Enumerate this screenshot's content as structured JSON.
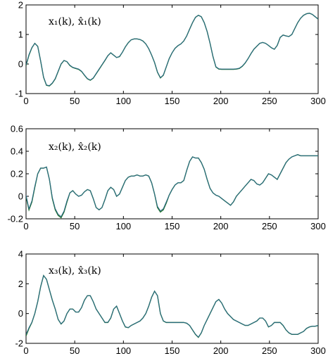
{
  "chart_data": [
    {
      "type": "line",
      "annotation": "x₁(k), x̂₁(k)",
      "xlim": [
        0,
        300
      ],
      "ylim": [
        -1,
        2
      ],
      "xticks": [
        0,
        50,
        100,
        150,
        200,
        250,
        300
      ],
      "yticks": [
        -1,
        0,
        1,
        2
      ],
      "colors": {
        "estimate": "#1f6e2e",
        "true": "#2a6a8a"
      },
      "x": [
        0,
        3,
        6,
        9,
        12,
        15,
        18,
        21,
        24,
        27,
        30,
        33,
        36,
        39,
        42,
        45,
        48,
        51,
        54,
        57,
        60,
        63,
        66,
        69,
        72,
        75,
        78,
        81,
        84,
        87,
        90,
        93,
        96,
        99,
        102,
        105,
        108,
        111,
        114,
        117,
        120,
        123,
        126,
        129,
        132,
        135,
        138,
        141,
        144,
        147,
        150,
        153,
        156,
        159,
        162,
        165,
        168,
        171,
        174,
        177,
        180,
        183,
        186,
        189,
        192,
        195,
        198,
        201,
        204,
        207,
        210,
        213,
        216,
        219,
        222,
        225,
        228,
        231,
        234,
        237,
        240,
        243,
        246,
        249,
        252,
        255,
        258,
        261,
        264,
        267,
        270,
        273,
        276,
        279,
        282,
        285,
        288,
        291,
        294,
        297,
        300
      ],
      "series": [
        {
          "values": [
            -0.05,
            0.3,
            0.55,
            0.7,
            0.6,
            0.1,
            -0.45,
            -0.72,
            -0.74,
            -0.65,
            -0.5,
            -0.25,
            0.0,
            0.12,
            0.08,
            -0.05,
            -0.12,
            -0.15,
            -0.18,
            -0.25,
            -0.38,
            -0.5,
            -0.55,
            -0.48,
            -0.33,
            -0.18,
            -0.03,
            0.12,
            0.28,
            0.38,
            0.3,
            0.22,
            0.25,
            0.4,
            0.58,
            0.72,
            0.82,
            0.85,
            0.85,
            0.83,
            0.78,
            0.68,
            0.52,
            0.3,
            0.05,
            -0.28,
            -0.47,
            -0.38,
            -0.1,
            0.18,
            0.38,
            0.53,
            0.62,
            0.68,
            0.78,
            0.95,
            1.18,
            1.4,
            1.58,
            1.65,
            1.6,
            1.4,
            1.1,
            0.7,
            0.25,
            -0.1,
            -0.17,
            -0.18,
            -0.18,
            -0.18,
            -0.18,
            -0.18,
            -0.17,
            -0.15,
            -0.08,
            0.03,
            0.18,
            0.35,
            0.5,
            0.6,
            0.7,
            0.73,
            0.7,
            0.63,
            0.55,
            0.5,
            0.63,
            0.9,
            0.98,
            0.95,
            0.93,
            1.0,
            1.2,
            1.4,
            1.55,
            1.65,
            1.7,
            1.72,
            1.68,
            1.6,
            1.52
          ]
        },
        {
          "values": [
            -0.03,
            0.32,
            0.56,
            0.7,
            0.59,
            0.11,
            -0.44,
            -0.71,
            -0.73,
            -0.64,
            -0.49,
            -0.24,
            0.01,
            0.12,
            0.08,
            -0.04,
            -0.11,
            -0.14,
            -0.17,
            -0.24,
            -0.37,
            -0.49,
            -0.54,
            -0.47,
            -0.32,
            -0.17,
            -0.02,
            0.13,
            0.28,
            0.38,
            0.3,
            0.22,
            0.26,
            0.4,
            0.58,
            0.72,
            0.82,
            0.85,
            0.85,
            0.83,
            0.78,
            0.68,
            0.52,
            0.3,
            0.05,
            -0.27,
            -0.46,
            -0.37,
            -0.09,
            0.18,
            0.38,
            0.53,
            0.62,
            0.68,
            0.78,
            0.95,
            1.18,
            1.4,
            1.58,
            1.65,
            1.6,
            1.4,
            1.1,
            0.7,
            0.25,
            -0.09,
            -0.16,
            -0.17,
            -0.17,
            -0.17,
            -0.17,
            -0.17,
            -0.16,
            -0.14,
            -0.07,
            0.04,
            0.18,
            0.35,
            0.5,
            0.6,
            0.7,
            0.73,
            0.7,
            0.63,
            0.55,
            0.5,
            0.63,
            0.9,
            0.98,
            0.95,
            0.93,
            1.0,
            1.2,
            1.4,
            1.55,
            1.65,
            1.7,
            1.72,
            1.68,
            1.6,
            1.52
          ]
        }
      ]
    },
    {
      "type": "line",
      "annotation": "x₂(k), x̂₂(k)",
      "xlim": [
        0,
        300
      ],
      "ylim": [
        -0.2,
        0.6
      ],
      "xticks": [
        0,
        50,
        100,
        150,
        200,
        250,
        300
      ],
      "yticks": [
        -0.2,
        0,
        0.2,
        0.4,
        0.6
      ],
      "colors": {
        "estimate": "#1f6e2e",
        "true": "#2a6a8a"
      },
      "x": [
        0,
        3,
        6,
        9,
        12,
        15,
        18,
        21,
        24,
        27,
        30,
        33,
        36,
        39,
        42,
        45,
        48,
        51,
        54,
        57,
        60,
        63,
        66,
        69,
        72,
        75,
        78,
        81,
        84,
        87,
        90,
        93,
        96,
        99,
        102,
        105,
        108,
        111,
        114,
        117,
        120,
        123,
        126,
        129,
        132,
        135,
        138,
        141,
        144,
        147,
        150,
        153,
        156,
        159,
        162,
        165,
        168,
        171,
        174,
        177,
        180,
        183,
        186,
        189,
        192,
        195,
        198,
        201,
        204,
        207,
        210,
        213,
        216,
        219,
        222,
        225,
        228,
        231,
        234,
        237,
        240,
        243,
        246,
        249,
        252,
        255,
        258,
        261,
        264,
        267,
        270,
        273,
        276,
        279,
        282,
        285,
        288,
        291,
        294,
        297,
        300
      ],
      "series": [
        {
          "values": [
            0.0,
            -0.12,
            -0.05,
            0.08,
            0.2,
            0.25,
            0.25,
            0.26,
            0.15,
            -0.02,
            -0.12,
            -0.17,
            -0.19,
            -0.14,
            -0.05,
            0.03,
            0.05,
            0.02,
            0.0,
            0.01,
            0.04,
            0.06,
            0.05,
            -0.02,
            -0.1,
            -0.12,
            -0.1,
            -0.03,
            0.05,
            0.08,
            0.06,
            0.0,
            0.02,
            0.08,
            0.14,
            0.17,
            0.18,
            0.18,
            0.19,
            0.18,
            0.18,
            0.19,
            0.18,
            0.12,
            0.02,
            -0.1,
            -0.14,
            -0.12,
            -0.06,
            0.01,
            0.06,
            0.1,
            0.12,
            0.12,
            0.14,
            0.23,
            0.31,
            0.35,
            0.34,
            0.34,
            0.3,
            0.24,
            0.15,
            0.07,
            0.03,
            0.01,
            0.0,
            -0.02,
            -0.04,
            -0.06,
            -0.08,
            -0.05,
            0.0,
            0.03,
            0.06,
            0.09,
            0.12,
            0.15,
            0.14,
            0.11,
            0.1,
            0.12,
            0.16,
            0.2,
            0.19,
            0.17,
            0.15,
            0.2,
            0.25,
            0.3,
            0.33,
            0.35,
            0.36,
            0.37,
            0.36,
            0.36,
            0.36,
            0.36,
            0.36,
            0.36,
            0.36
          ]
        },
        {
          "values": [
            0.01,
            -0.11,
            -0.04,
            0.09,
            0.2,
            0.25,
            0.25,
            0.26,
            0.15,
            -0.01,
            -0.11,
            -0.16,
            -0.18,
            -0.13,
            -0.04,
            0.03,
            0.05,
            0.02,
            0.0,
            0.01,
            0.04,
            0.06,
            0.05,
            -0.02,
            -0.1,
            -0.12,
            -0.1,
            -0.03,
            0.05,
            0.08,
            0.06,
            0.0,
            0.02,
            0.08,
            0.14,
            0.17,
            0.18,
            0.18,
            0.19,
            0.18,
            0.18,
            0.19,
            0.18,
            0.12,
            0.02,
            -0.09,
            -0.13,
            -0.11,
            -0.05,
            0.01,
            0.06,
            0.1,
            0.12,
            0.12,
            0.14,
            0.23,
            0.31,
            0.35,
            0.34,
            0.34,
            0.3,
            0.24,
            0.15,
            0.07,
            0.03,
            0.01,
            0.0,
            -0.02,
            -0.04,
            -0.06,
            -0.08,
            -0.05,
            0.0,
            0.03,
            0.06,
            0.09,
            0.12,
            0.15,
            0.14,
            0.11,
            0.1,
            0.12,
            0.16,
            0.2,
            0.19,
            0.17,
            0.15,
            0.2,
            0.25,
            0.3,
            0.33,
            0.35,
            0.36,
            0.37,
            0.36,
            0.36,
            0.36,
            0.36,
            0.36,
            0.36,
            0.36
          ]
        }
      ]
    },
    {
      "type": "line",
      "annotation": "x₃(k), x̂₃(k)",
      "xlim": [
        0,
        300
      ],
      "ylim": [
        -2,
        4
      ],
      "xticks": [
        0,
        50,
        100,
        150,
        200,
        250,
        300
      ],
      "yticks": [
        -2,
        0,
        2,
        4
      ],
      "colors": {
        "estimate": "#1f6e2e",
        "true": "#2a6a8a"
      },
      "x": [
        0,
        3,
        6,
        9,
        12,
        15,
        18,
        21,
        24,
        27,
        30,
        33,
        36,
        39,
        42,
        45,
        48,
        51,
        54,
        57,
        60,
        63,
        66,
        69,
        72,
        75,
        78,
        81,
        84,
        87,
        90,
        93,
        96,
        99,
        102,
        105,
        108,
        111,
        114,
        117,
        120,
        123,
        126,
        129,
        132,
        135,
        138,
        141,
        144,
        147,
        150,
        153,
        156,
        159,
        162,
        165,
        168,
        171,
        174,
        177,
        180,
        183,
        186,
        189,
        192,
        195,
        198,
        201,
        204,
        207,
        210,
        213,
        216,
        219,
        222,
        225,
        228,
        231,
        234,
        237,
        240,
        243,
        246,
        249,
        252,
        255,
        258,
        261,
        264,
        267,
        270,
        273,
        276,
        279,
        282,
        285,
        288,
        291,
        294,
        297,
        300
      ],
      "series": [
        {
          "values": [
            -1.5,
            -1.0,
            -0.6,
            0.0,
            0.8,
            1.8,
            2.55,
            2.3,
            1.6,
            0.9,
            0.3,
            -0.4,
            -0.7,
            -0.5,
            0.0,
            0.3,
            0.3,
            0.1,
            0.1,
            0.4,
            0.9,
            1.2,
            1.2,
            0.8,
            0.3,
            0.0,
            -0.3,
            -0.6,
            -0.6,
            -0.3,
            0.3,
            0.5,
            0.0,
            -0.5,
            -0.9,
            -0.95,
            -0.8,
            -0.7,
            -0.6,
            -0.5,
            -0.3,
            0.0,
            0.5,
            1.1,
            1.5,
            1.2,
            0.0,
            -0.5,
            -0.6,
            -0.6,
            -0.6,
            -0.6,
            -0.6,
            -0.6,
            -0.6,
            -0.65,
            -0.8,
            -1.1,
            -1.4,
            -1.6,
            -1.3,
            -0.8,
            -0.4,
            0.0,
            0.4,
            0.8,
            0.95,
            0.7,
            0.3,
            0.0,
            -0.2,
            -0.4,
            -0.5,
            -0.6,
            -0.7,
            -0.8,
            -0.8,
            -0.7,
            -0.6,
            -0.5,
            -0.3,
            -0.3,
            -0.5,
            -0.9,
            -0.8,
            -0.6,
            -0.6,
            -0.6,
            -0.8,
            -1.1,
            -1.3,
            -1.4,
            -1.4,
            -1.4,
            -1.3,
            -1.2,
            -1.0,
            -0.9,
            -0.85,
            -0.85,
            -0.8
          ]
        },
        {
          "values": [
            -1.4,
            -0.95,
            -0.58,
            0.0,
            0.8,
            1.8,
            2.55,
            2.3,
            1.6,
            0.9,
            0.3,
            -0.39,
            -0.69,
            -0.49,
            0.0,
            0.3,
            0.3,
            0.1,
            0.1,
            0.4,
            0.9,
            1.2,
            1.2,
            0.8,
            0.3,
            0.0,
            -0.3,
            -0.59,
            -0.59,
            -0.3,
            0.3,
            0.5,
            0.0,
            -0.49,
            -0.89,
            -0.94,
            -0.8,
            -0.7,
            -0.6,
            -0.5,
            -0.3,
            0.0,
            0.5,
            1.1,
            1.5,
            1.2,
            0.0,
            -0.49,
            -0.59,
            -0.6,
            -0.6,
            -0.6,
            -0.6,
            -0.6,
            -0.6,
            -0.64,
            -0.8,
            -1.09,
            -1.39,
            -1.58,
            -1.29,
            -0.8,
            -0.4,
            0.0,
            0.4,
            0.8,
            0.95,
            0.7,
            0.3,
            0.0,
            -0.2,
            -0.4,
            -0.5,
            -0.6,
            -0.7,
            -0.79,
            -0.79,
            -0.7,
            -0.6,
            -0.5,
            -0.3,
            -0.3,
            -0.5,
            -0.89,
            -0.8,
            -0.6,
            -0.6,
            -0.6,
            -0.79,
            -1.09,
            -1.29,
            -1.39,
            -1.39,
            -1.39,
            -1.3,
            -1.2,
            -1.0,
            -0.9,
            -0.85,
            -0.85,
            -0.8
          ]
        }
      ]
    }
  ]
}
